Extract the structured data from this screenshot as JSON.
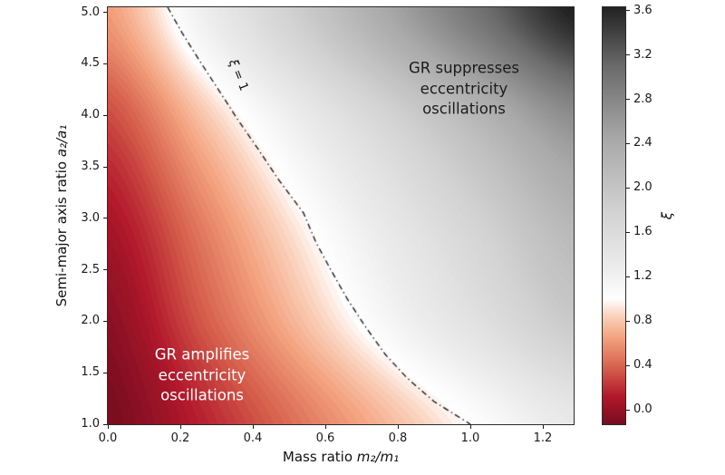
{
  "figure": {
    "background": "#ffffff"
  },
  "chart_data": {
    "type": "heatmap",
    "title": "",
    "axes": {
      "xlabel_prefix": "Mass ratio ",
      "xlabel_math": "m₂/m₁",
      "ylabel_prefix": "Semi-major axis ratio ",
      "ylabel_math": "a₂/a₁",
      "xlim": [
        0,
        1.285
      ],
      "ylim": [
        1.0,
        5.05
      ],
      "x_tick_labels": [
        "0.0",
        "0.2",
        "0.4",
        "0.6",
        "0.8",
        "1.0",
        "1.2"
      ],
      "y_tick_labels": [
        "1.0",
        "1.5",
        "2.0",
        "2.5",
        "3.0",
        "3.5",
        "4.0",
        "4.5",
        "5.0"
      ],
      "grid": "off",
      "spine_color": "#2b2b2b"
    },
    "field": {
      "comment": "xi values sampled on grid; rows bottom(y=1) to top(y=5)",
      "x": [
        0.0,
        0.26,
        0.52,
        0.78,
        1.04,
        1.3
      ],
      "y": [
        1.0,
        2.0,
        3.0,
        4.0,
        5.0
      ],
      "xi": [
        [
          -0.13,
          0.15,
          0.45,
          0.75,
          1.05,
          1.35
        ],
        [
          -0.05,
          0.35,
          0.74,
          1.14,
          1.53,
          1.93
        ],
        [
          0.08,
          0.51,
          0.95,
          1.38,
          1.82,
          2.25
        ],
        [
          0.3,
          0.79,
          1.28,
          1.77,
          2.27,
          2.76
        ],
        [
          0.62,
          1.23,
          1.84,
          2.45,
          3.05,
          3.66
        ]
      ],
      "levels_step": 0.03
    },
    "colormap": {
      "center_value": 1.0,
      "red_stops": [
        [
          0,
          "#780c20"
        ],
        [
          0.22,
          "#b2182b"
        ],
        [
          0.45,
          "#d6604d"
        ],
        [
          0.7,
          "#f4a582"
        ],
        [
          0.88,
          "#fbd6c2"
        ],
        [
          1,
          "#ffffff"
        ]
      ],
      "gray_stops": [
        [
          0,
          "#ffffff"
        ],
        [
          0.1,
          "#ededed"
        ],
        [
          0.3,
          "#d2d2d2"
        ],
        [
          0.55,
          "#a8a8a8"
        ],
        [
          0.8,
          "#6a6a6a"
        ],
        [
          1,
          "#222222"
        ]
      ]
    },
    "colorbar": {
      "label": "ξ",
      "vmin": -0.13,
      "vmax": 3.63,
      "tick_labels": [
        "0.0",
        "0.4",
        "0.8",
        "1.2",
        "1.6",
        "2.0",
        "2.4",
        "2.8",
        "3.2",
        "3.6"
      ]
    },
    "contour": {
      "level": 1.0,
      "label_sym": "ξ",
      "label_rest": " = 1",
      "line_style": "dash-dot",
      "line_color": "#111111",
      "points": [
        [
          0.165,
          5.05
        ],
        [
          0.205,
          4.8
        ],
        [
          0.255,
          4.52
        ],
        [
          0.305,
          4.25
        ],
        [
          0.36,
          3.95
        ],
        [
          0.415,
          3.67
        ],
        [
          0.47,
          3.38
        ],
        [
          0.54,
          3.05
        ],
        [
          0.575,
          2.76
        ],
        [
          0.615,
          2.5
        ],
        [
          0.66,
          2.22
        ],
        [
          0.71,
          1.95
        ],
        [
          0.765,
          1.68
        ],
        [
          0.825,
          1.45
        ],
        [
          0.9,
          1.22
        ],
        [
          1.0,
          1.0
        ]
      ]
    },
    "annotations": {
      "suppresses": {
        "lines": [
          "GR suppresses",
          "eccentricity",
          "oscillations"
        ],
        "color": "#1c1c1c"
      },
      "amplifies": {
        "lines": [
          "GR amplifies",
          "eccentricity",
          "oscillations"
        ],
        "color": "#ffffff"
      }
    }
  }
}
